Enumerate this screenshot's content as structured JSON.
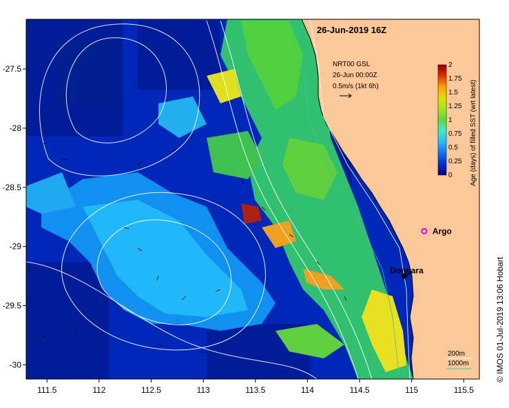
{
  "map": {
    "title": "26-Jun-2019 16Z",
    "current_info": {
      "line1": "NRT00 GSL",
      "line2": "26-Jun 00:00Z",
      "line3": "0.5m/s (1kt 6h)"
    },
    "x_ticks": [
      "111.5",
      "112",
      "112.5",
      "113",
      "113.5",
      "114",
      "114.5",
      "115",
      "115.5"
    ],
    "y_ticks": [
      "-27.5",
      "-28",
      "-28.5",
      "-29",
      "-29.5",
      "-30"
    ],
    "x_range": [
      111.3,
      115.65
    ],
    "y_range": [
      -30.12,
      -27.08
    ],
    "places": [
      {
        "name": "Dongara",
        "lon": 114.93,
        "lat": -29.25,
        "color": "#000000"
      },
      {
        "name": "Argo",
        "lon": 115.12,
        "lat": -28.87,
        "color": "#e000e0"
      }
    ],
    "bathymetry_legend": {
      "contour_200": "200m",
      "contour_1000": "1000m",
      "color_1000": "#40c0a0"
    },
    "colorbar": {
      "label": "Age (days) of filled SST (wrt latest)",
      "ticks": [
        "0",
        "0.25",
        "0.5",
        "0.75",
        "1",
        "1.25",
        "1.5",
        "1.75",
        "2"
      ],
      "colors": [
        "#000090",
        "#0030d0",
        "#1080ff",
        "#20c0ff",
        "#40e8d0",
        "#60d840",
        "#a0e820",
        "#e0e000",
        "#ffa000",
        "#e03000",
        "#900000"
      ]
    },
    "credit": "© IMOS 01-Jul-2019 13:06 Hobart",
    "land_color": "#fcc89a"
  }
}
